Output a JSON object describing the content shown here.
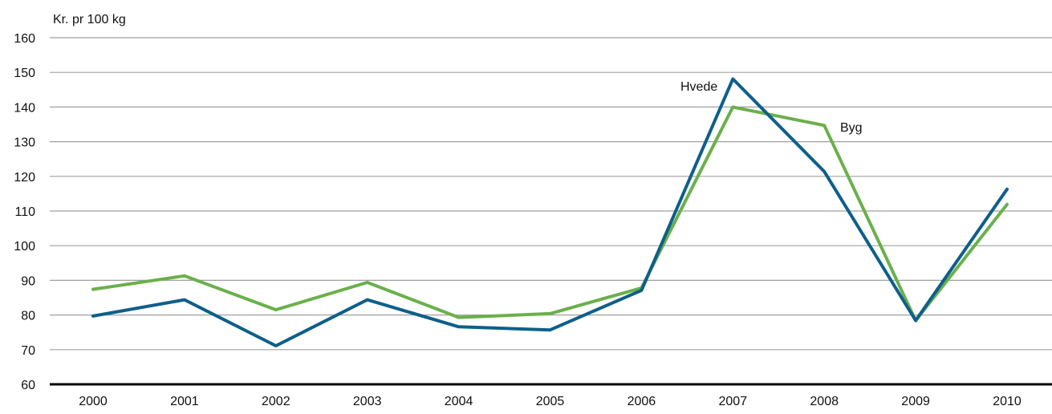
{
  "chart_data": {
    "type": "line",
    "title": "",
    "ylabel": "Kr. pr 100 kg",
    "xlabel": "",
    "x": [
      "2000",
      "2001",
      "2002",
      "2003",
      "2004",
      "2005",
      "2006",
      "2007",
      "2008",
      "2009",
      "2010"
    ],
    "ylim": [
      60,
      160
    ],
    "yticks": [
      60,
      70,
      80,
      90,
      100,
      110,
      120,
      130,
      140,
      150,
      160
    ],
    "grid": true,
    "legend": "inline labels",
    "series": [
      {
        "name": "Hvede",
        "color": "#0e5f8a",
        "values": [
          79.7,
          84.4,
          71.1,
          84.4,
          76.6,
          75.7,
          87.1,
          148.1,
          121.4,
          78.4,
          116.3
        ]
      },
      {
        "name": "Byg",
        "color": "#6ab04c",
        "values": [
          87.4,
          91.3,
          81.5,
          89.4,
          79.3,
          80.4,
          87.8,
          140.0,
          134.7,
          78.4,
          111.9
        ]
      }
    ]
  }
}
